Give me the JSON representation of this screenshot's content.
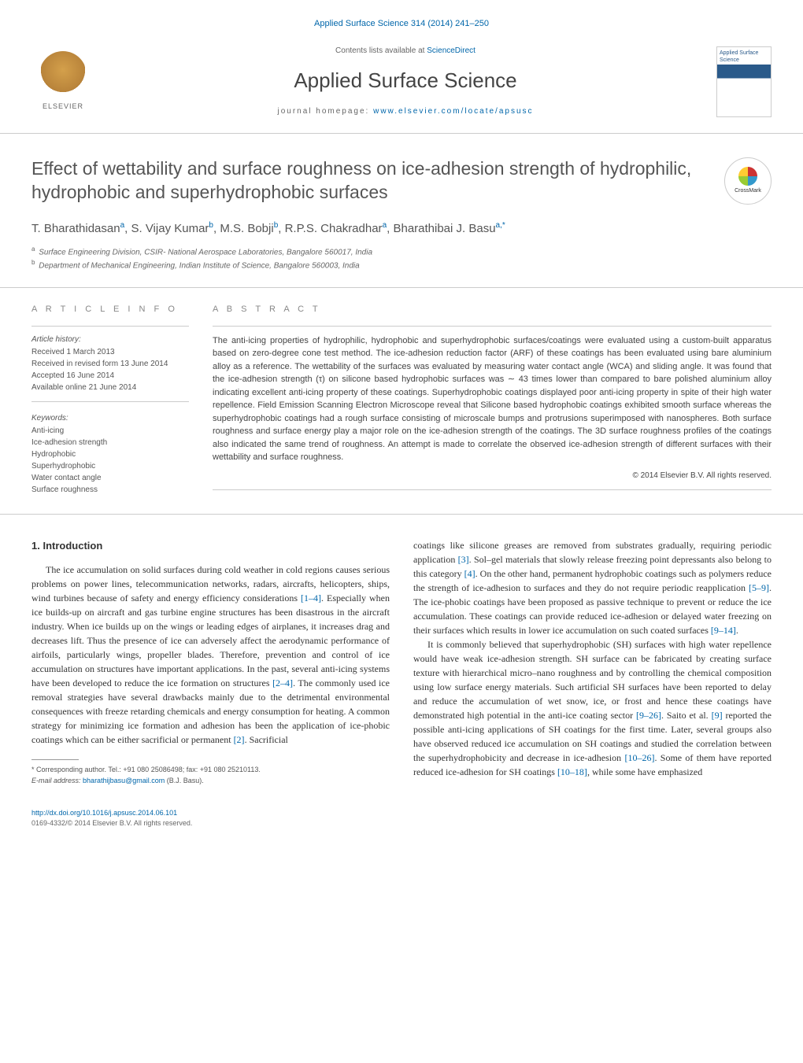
{
  "header": {
    "citation_link": "Applied Surface Science 314 (2014) 241–250",
    "contents_label": "Contents lists available at",
    "contents_link_text": "ScienceDirect",
    "journal_title": "Applied Surface Science",
    "homepage_label": "journal homepage:",
    "homepage_link": "www.elsevier.com/locate/apsusc",
    "elsevier_label": "ELSEVIER",
    "cover_title": "Applied Surface Science"
  },
  "article": {
    "title": "Effect of wettability and surface roughness on ice-adhesion strength of hydrophilic, hydrophobic and superhydrophobic surfaces",
    "crossmark_label": "CrossMark",
    "authors_html": "T. Bharathidasan",
    "authors": [
      {
        "name": "T. Bharathidasan",
        "aff": "a"
      },
      {
        "name": "S. Vijay Kumar",
        "aff": "b"
      },
      {
        "name": "M.S. Bobji",
        "aff": "b"
      },
      {
        "name": "R.P.S. Chakradhar",
        "aff": "a"
      },
      {
        "name": "Bharathibai J. Basu",
        "aff": "a,*"
      }
    ],
    "affiliations": [
      {
        "key": "a",
        "text": "Surface Engineering Division, CSIR- National Aerospace Laboratories, Bangalore 560017, India"
      },
      {
        "key": "b",
        "text": "Department of Mechanical Engineering, Indian Institute of Science, Bangalore 560003, India"
      }
    ]
  },
  "article_info": {
    "heading": "a r t i c l e   i n f o",
    "history_label": "Article history:",
    "history": [
      "Received 1 March 2013",
      "Received in revised form 13 June 2014",
      "Accepted 16 June 2014",
      "Available online 21 June 2014"
    ],
    "keywords_label": "Keywords:",
    "keywords": [
      "Anti-icing",
      "Ice-adhesion strength",
      "Hydrophobic",
      "Superhydrophobic",
      "Water contact angle",
      "Surface roughness"
    ]
  },
  "abstract": {
    "heading": "a b s t r a c t",
    "text": "The anti-icing properties of hydrophilic, hydrophobic and superhydrophobic surfaces/coatings were evaluated using a custom-built apparatus based on zero-degree cone test method. The ice-adhesion reduction factor (ARF) of these coatings has been evaluated using bare aluminium alloy as a reference. The wettability of the surfaces was evaluated by measuring water contact angle (WCA) and sliding angle. It was found that the ice-adhesion strength (τ) on silicone based hydrophobic surfaces was ∼ 43 times lower than compared to bare polished aluminium alloy indicating excellent anti-icing property of these coatings. Superhydrophobic coatings displayed poor anti-icing property in spite of their high water repellence. Field Emission Scanning Electron Microscope reveal that Silicone based hydrophobic coatings exhibited smooth surface whereas the superhydrophobic coatings had a rough surface consisting of microscale bumps and protrusions superimposed with nanospheres. Both surface roughness and surface energy play a major role on the ice-adhesion strength of the coatings. The 3D surface roughness profiles of the coatings also indicated the same trend of roughness. An attempt is made to correlate the observed ice-adhesion strength of different surfaces with their wettability and surface roughness.",
    "copyright": "© 2014 Elsevier B.V. All rights reserved."
  },
  "body": {
    "section_heading": "1.  Introduction",
    "col1_p1_a": "The ice accumulation on solid surfaces during cold weather in cold regions causes serious problems on power lines, telecommunication networks, radars, aircrafts, helicopters, ships, wind turbines because of safety and energy efficiency considerations ",
    "col1_ref1": "[1–4]",
    "col1_p1_b": ". Especially when ice builds-up on aircraft and gas turbine engine structures has been disastrous in the aircraft industry. When ice builds up on the wings or leading edges of airplanes, it increases drag and decreases lift. Thus the presence of ice can adversely affect the aerodynamic performance of airfoils, particularly wings, propeller blades. Therefore, prevention and control of ice accumulation on structures have important applications. In the past, several anti-icing systems have been developed to reduce the ice formation on structures ",
    "col1_ref2": "[2–4]",
    "col1_p1_c": ". The commonly used ice removal strategies have several drawbacks mainly due to the detrimental environmental consequences with freeze retarding chemicals and energy consumption for heating. A common strategy for minimizing ice formation and adhesion has been the application of ice-phobic coatings which can be either sacrificial or permanent ",
    "col1_ref3": "[2]",
    "col1_p1_d": ". Sacrificial",
    "col2_p1_a": "coatings like silicone greases are removed from substrates gradually, requiring periodic application ",
    "col2_ref1": "[3]",
    "col2_p1_b": ". Sol–gel materials that slowly release freezing point depressants also belong to this category ",
    "col2_ref2": "[4]",
    "col2_p1_c": ". On the other hand, permanent hydrophobic coatings such as polymers reduce the strength of ice-adhesion to surfaces and they do not require periodic reapplication ",
    "col2_ref3": "[5–9]",
    "col2_p1_d": ". The ice-phobic coatings have been proposed as passive technique to prevent or reduce the ice accumulation. These coatings can provide reduced ice-adhesion or delayed water freezing on their surfaces which results in lower ice accumulation on such coated surfaces ",
    "col2_ref4": "[9–14]",
    "col2_p1_e": ".",
    "col2_p2_a": "It is commonly believed that superhydrophobic (SH) surfaces with high water repellence would have weak ice-adhesion strength. SH surface can be fabricated by creating surface texture with hierarchical micro–nano roughness and by controlling the chemical composition using low surface energy materials. Such artificial SH surfaces have been reported to delay and reduce the accumulation of wet snow, ice, or frost and hence these coatings have demonstrated high potential in the anti-ice coating sector ",
    "col2_ref5": "[9–26]",
    "col2_p2_b": ". Saito et al. ",
    "col2_ref6": "[9]",
    "col2_p2_c": " reported the possible anti-icing applications of SH coatings for the first time. Later, several groups also have observed reduced ice accumulation on SH coatings and studied the correlation between the superhydrophobicity and decrease in ice-adhesion ",
    "col2_ref7": "[10–26]",
    "col2_p2_d": ". Some of them have reported reduced ice-adhesion for SH coatings ",
    "col2_ref8": "[10–18]",
    "col2_p2_e": ", while some have emphasized"
  },
  "footnote": {
    "corr": "* Corresponding author. Tel.: +91 080 25086498; fax: +91 080 25210113.",
    "email_label": "E-mail address:",
    "email": "bharathijbasu@gmail.com",
    "email_suffix": " (B.J. Basu)."
  },
  "footer": {
    "doi": "http://dx.doi.org/10.1016/j.apsusc.2014.06.101",
    "issn_line": "0169-4332/© 2014 Elsevier B.V. All rights reserved."
  },
  "colors": {
    "link": "#0066aa",
    "text": "#333333",
    "muted": "#666666",
    "border": "#cccccc"
  }
}
